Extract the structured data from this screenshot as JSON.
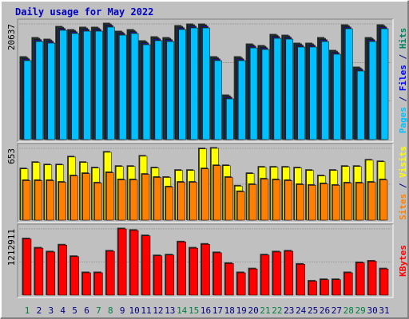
{
  "title": "Daily usage for May 2022",
  "x_axis": {
    "categories": [
      "1",
      "2",
      "3",
      "4",
      "5",
      "6",
      "7",
      "8",
      "9",
      "10",
      "11",
      "12",
      "13",
      "14",
      "15",
      "16",
      "17",
      "18",
      "19",
      "20",
      "21",
      "22",
      "23",
      "24",
      "25",
      "26",
      "27",
      "28",
      "29",
      "30",
      "31"
    ],
    "colors": [
      "#008040",
      "#000080",
      "#000080",
      "#000080",
      "#000080",
      "#000080",
      "#008040",
      "#008040",
      "#000080",
      "#000080",
      "#000080",
      "#000080",
      "#000080",
      "#008040",
      "#008040",
      "#000080",
      "#000080",
      "#000080",
      "#000080",
      "#000080",
      "#008040",
      "#008040",
      "#000080",
      "#000080",
      "#000080",
      "#000080",
      "#000080",
      "#008040",
      "#008040",
      "#000080",
      "#000080"
    ]
  },
  "chart_data": [
    {
      "type": "bar",
      "ylim": [
        0,
        20637
      ],
      "yticks": [
        20637
      ],
      "legend_separator": " / ",
      "series": [
        {
          "name": "Hits",
          "color": "#00805c",
          "values": [
            14660,
            18073,
            17790,
            20066,
            19496,
            19924,
            19924,
            20637,
            19212,
            19496,
            17504,
            18216,
            18073,
            20209,
            20493,
            20493,
            14660,
            7827,
            14660,
            16935,
            16650,
            18643,
            18500,
            17077,
            17077,
            18073,
            15796,
            20350,
            12808,
            18073,
            20350
          ]
        },
        {
          "name": "Files",
          "color": "#0000ff",
          "values": [
            14400,
            17820,
            17530,
            19810,
            19240,
            19670,
            19670,
            20380,
            18950,
            19240,
            17250,
            17960,
            17820,
            19950,
            20240,
            20240,
            14400,
            7570,
            14400,
            16680,
            16390,
            18390,
            18240,
            16820,
            16820,
            17820,
            15540,
            20090,
            12550,
            17820,
            20090
          ]
        },
        {
          "name": "Pages",
          "color": "#00c0ff",
          "values": [
            14090,
            17500,
            17220,
            19500,
            18930,
            19350,
            19350,
            20070,
            18640,
            18930,
            16930,
            17650,
            17500,
            19640,
            19920,
            19920,
            14090,
            7260,
            14090,
            16360,
            16080,
            18070,
            17930,
            16510,
            16510,
            17500,
            15230,
            19780,
            12240,
            17500,
            19780
          ]
        }
      ]
    },
    {
      "type": "bar",
      "ylim": [
        0,
        653
      ],
      "yticks": [
        653
      ],
      "legend_separator": " / ",
      "series": [
        {
          "name": "Visits",
          "color": "#ffff00",
          "values": [
            466,
            524,
            502,
            502,
            574,
            524,
            474,
            617,
            488,
            488,
            581,
            474,
            388,
            452,
            452,
            648,
            653,
            495,
            309,
            423,
            481,
            481,
            481,
            474,
            452,
            402,
            452,
            488,
            488,
            545,
            531
          ]
        },
        {
          "name": "Sites",
          "color": "#ff8000",
          "values": [
            359,
            359,
            359,
            344,
            402,
            423,
            337,
            431,
            366,
            366,
            416,
            388,
            301,
            344,
            344,
            466,
            495,
            388,
            258,
            323,
            373,
            366,
            359,
            323,
            316,
            330,
            316,
            337,
            337,
            344,
            366
          ]
        }
      ]
    },
    {
      "type": "bar",
      "ylim": [
        0,
        1212911
      ],
      "yticks": [
        1212911
      ],
      "series": [
        {
          "name": "KBytes",
          "color": "#ff0000",
          "values": [
            1029592,
            860344,
            789824,
            916760,
            705200,
            409016,
            409016,
            803928,
            1212911,
            1184736,
            1086008,
            719304,
            733408,
            973176,
            860344,
            930864,
            775720,
            578264,
            409016,
            479536,
            733408,
            789824,
            803928,
            564160,
            253872,
            282080,
            282080,
            409016,
            592368,
            620576,
            479536
          ]
        }
      ]
    }
  ]
}
